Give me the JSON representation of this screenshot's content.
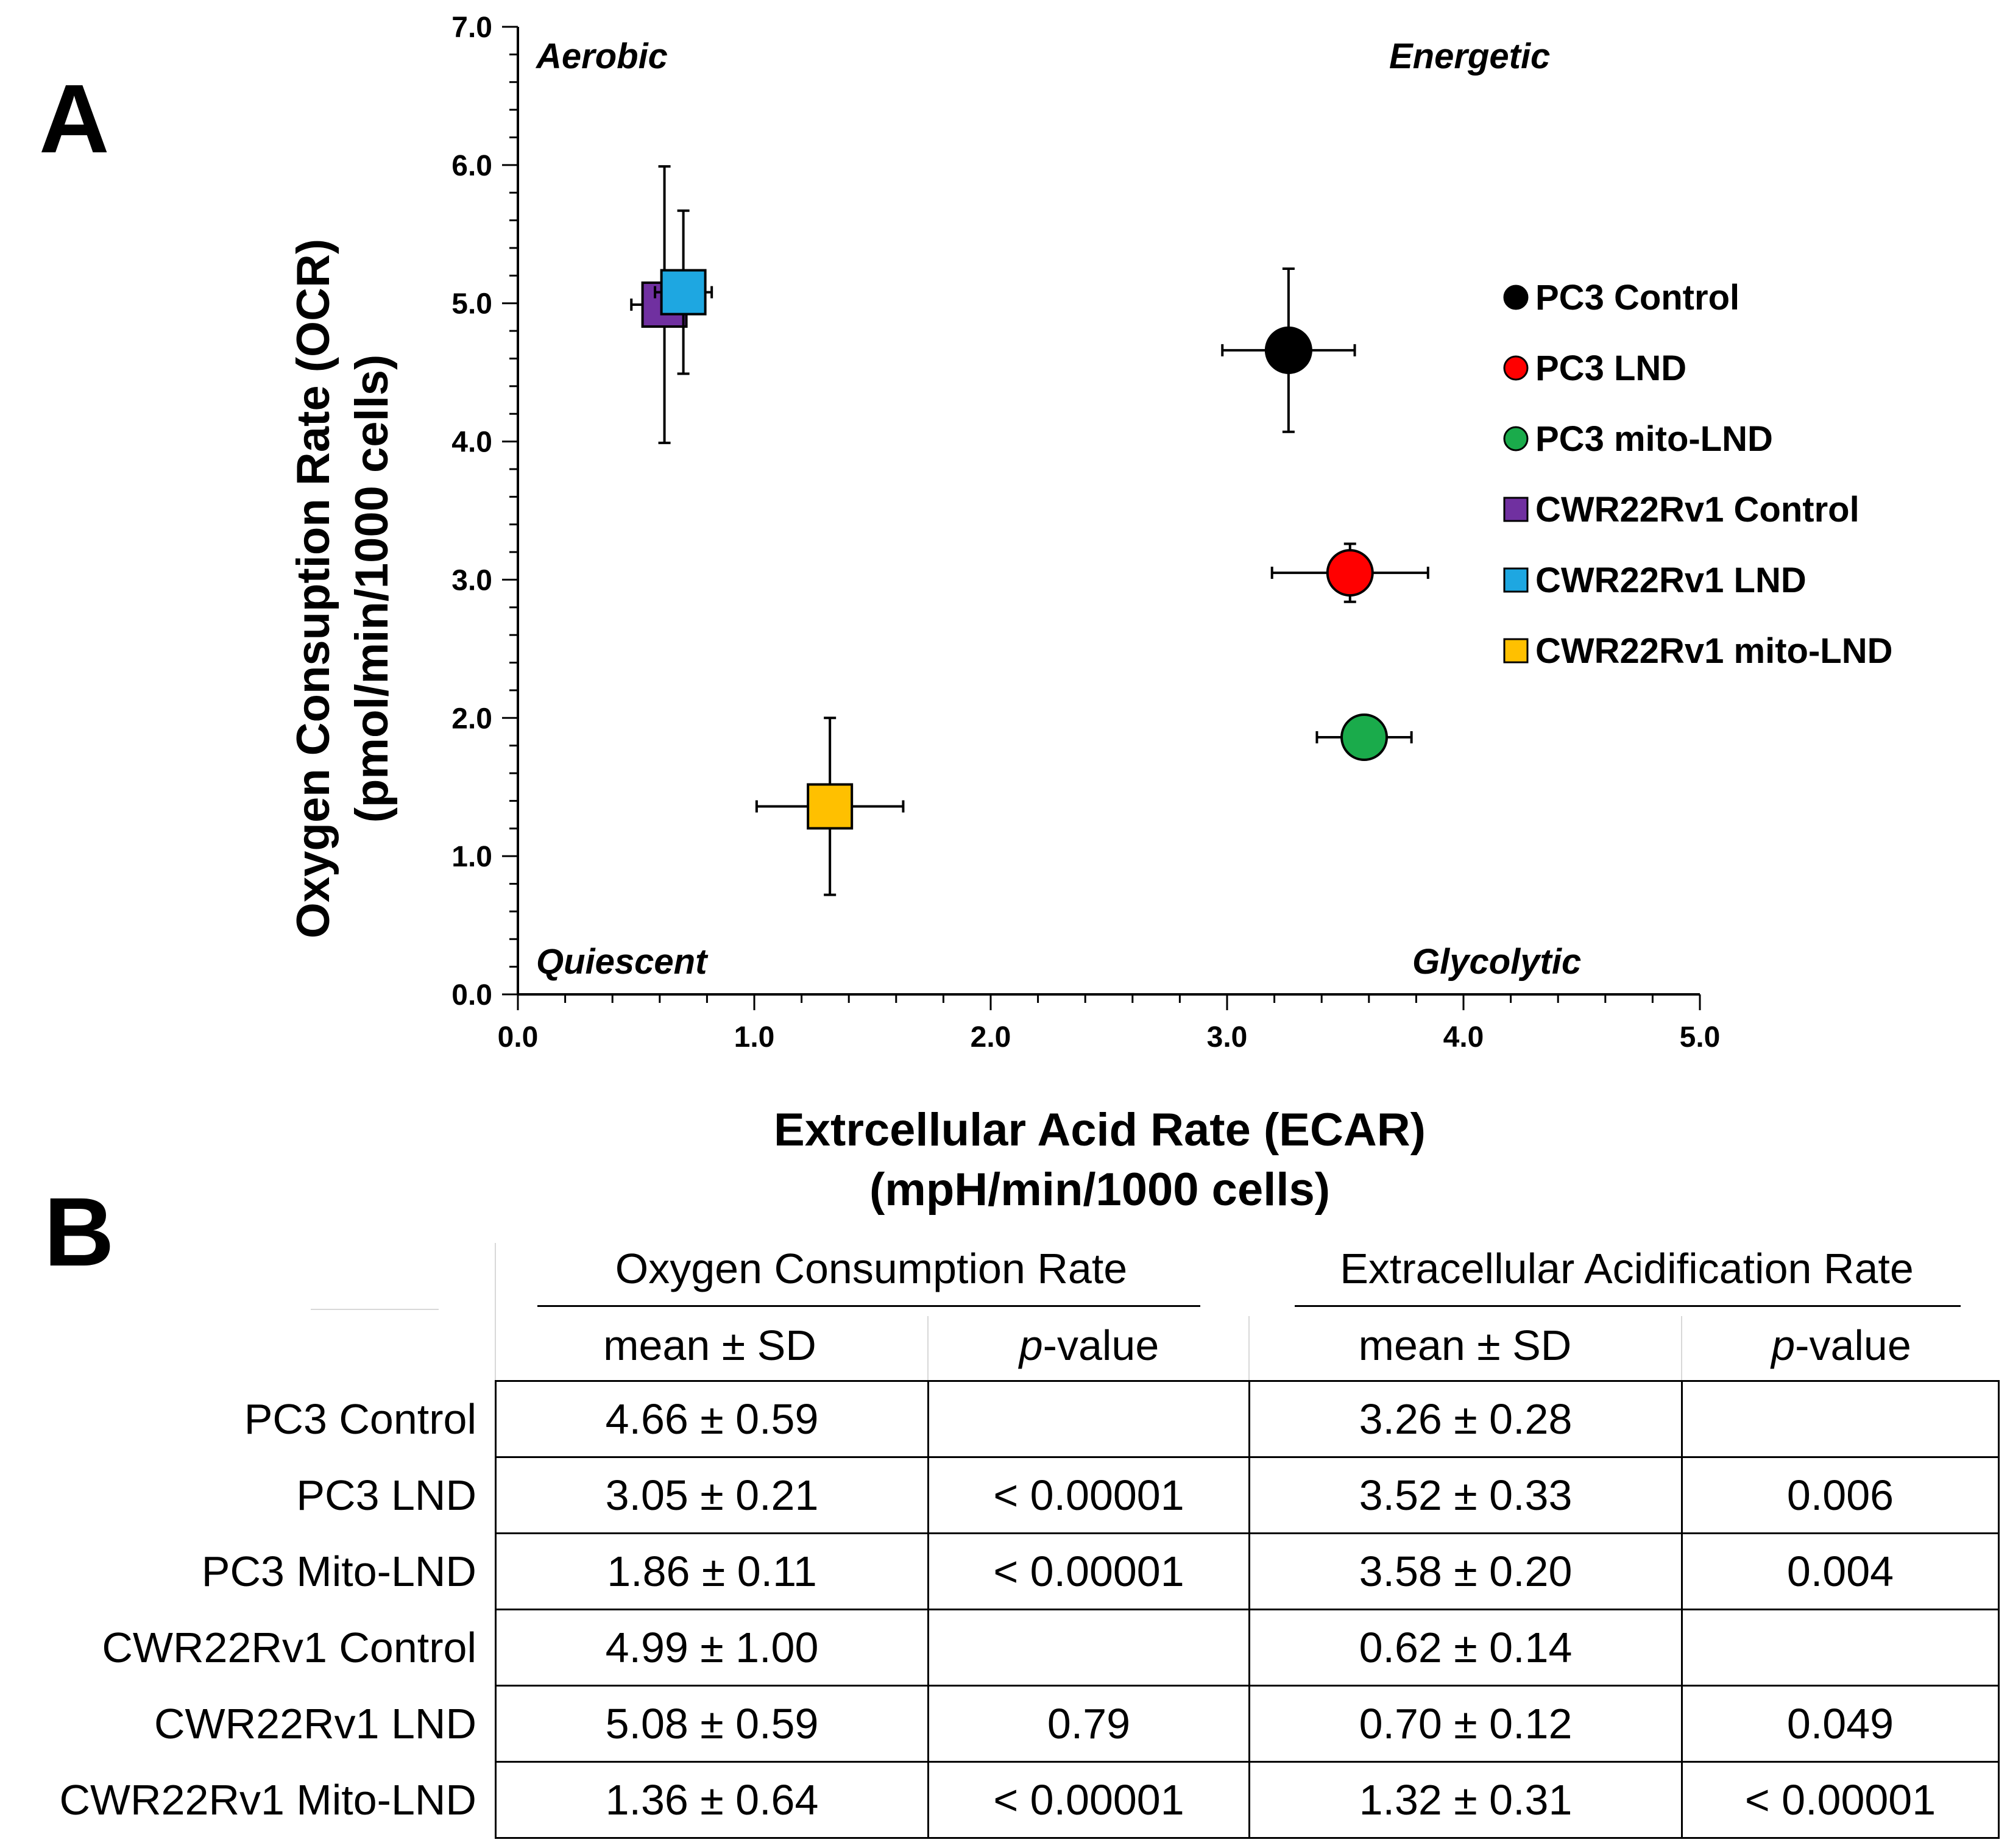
{
  "panel_a_label": "A",
  "panel_b_label": "B",
  "chart_data": {
    "type": "scatter",
    "xlabel_line1": "Extrcellular Acid Rate (ECAR)",
    "xlabel_line2": "(mpH/min/1000 cells)",
    "ylabel_line1": "Oxygen Consuption Rate (OCR)",
    "ylabel_line2": "(pmol/min/1000 cells)",
    "xlim": [
      0,
      5
    ],
    "ylim": [
      0,
      7
    ],
    "x_ticks": [
      "0.0",
      "1.0",
      "2.0",
      "3.0",
      "4.0",
      "5.0"
    ],
    "y_ticks": [
      "0.0",
      "1.0",
      "2.0",
      "3.0",
      "4.0",
      "5.0",
      "6.0",
      "7.0"
    ],
    "quadrant_labels": {
      "top_left": "Aerobic",
      "top_right": "Energetic",
      "bottom_left": "Quiescent",
      "bottom_right": "Glycolytic"
    },
    "series": [
      {
        "name": "PC3 Control",
        "marker": "circle",
        "color": "#000000",
        "x": 3.26,
        "x_err": 0.28,
        "y": 4.66,
        "y_err": 0.59
      },
      {
        "name": "PC3 LND",
        "marker": "circle",
        "color": "#ff0000",
        "x": 3.52,
        "x_err": 0.33,
        "y": 3.05,
        "y_err": 0.21
      },
      {
        "name": "PC3 mito-LND",
        "marker": "circle",
        "color": "#1aab4b",
        "x": 3.58,
        "x_err": 0.2,
        "y": 1.86,
        "y_err": 0.11
      },
      {
        "name": "CWR22Rv1 Control",
        "marker": "square",
        "color": "#7030a0",
        "x": 0.62,
        "x_err": 0.14,
        "y": 4.99,
        "y_err": 1.0
      },
      {
        "name": "CWR22Rv1 LND",
        "marker": "square",
        "color": "#1ea7e1",
        "x": 0.7,
        "x_err": 0.12,
        "y": 5.08,
        "y_err": 0.59
      },
      {
        "name": "CWR22Rv1 mito-LND",
        "marker": "square",
        "color": "#ffc000",
        "x": 1.32,
        "x_err": 0.31,
        "y": 1.36,
        "y_err": 0.64
      }
    ]
  },
  "table": {
    "group_headers": [
      "Oxygen Consumption Rate",
      "Extracellular Acidification Rate"
    ],
    "sub_headers": [
      "mean ± SD",
      "p-value",
      "mean ± SD",
      "p-value"
    ],
    "p_italic": "p",
    "p_rest": "-value",
    "rows": [
      {
        "label": "PC3 Control",
        "ocr_mean": "4.66 ± 0.59",
        "ocr_p": "",
        "ecar_mean": "3.26 ± 0.28",
        "ecar_p": ""
      },
      {
        "label": "PC3 LND",
        "ocr_mean": "3.05 ± 0.21",
        "ocr_p": "< 0.00001",
        "ecar_mean": "3.52 ± 0.33",
        "ecar_p": "0.006"
      },
      {
        "label": "PC3 Mito-LND",
        "ocr_mean": "1.86 ± 0.11",
        "ocr_p": "< 0.00001",
        "ecar_mean": "3.58 ± 0.20",
        "ecar_p": "0.004"
      },
      {
        "label": "CWR22Rv1 Control",
        "ocr_mean": "4.99 ± 1.00",
        "ocr_p": "",
        "ecar_mean": "0.62 ± 0.14",
        "ecar_p": ""
      },
      {
        "label": "CWR22Rv1 LND",
        "ocr_mean": "5.08 ± 0.59",
        "ocr_p": "0.79",
        "ecar_mean": "0.70 ± 0.12",
        "ecar_p": "0.049"
      },
      {
        "label": "CWR22Rv1 Mito-LND",
        "ocr_mean": "1.36 ± 0.64",
        "ocr_p": "< 0.00001",
        "ecar_mean": "1.32 ± 0.31",
        "ecar_p": "< 0.00001"
      }
    ]
  }
}
